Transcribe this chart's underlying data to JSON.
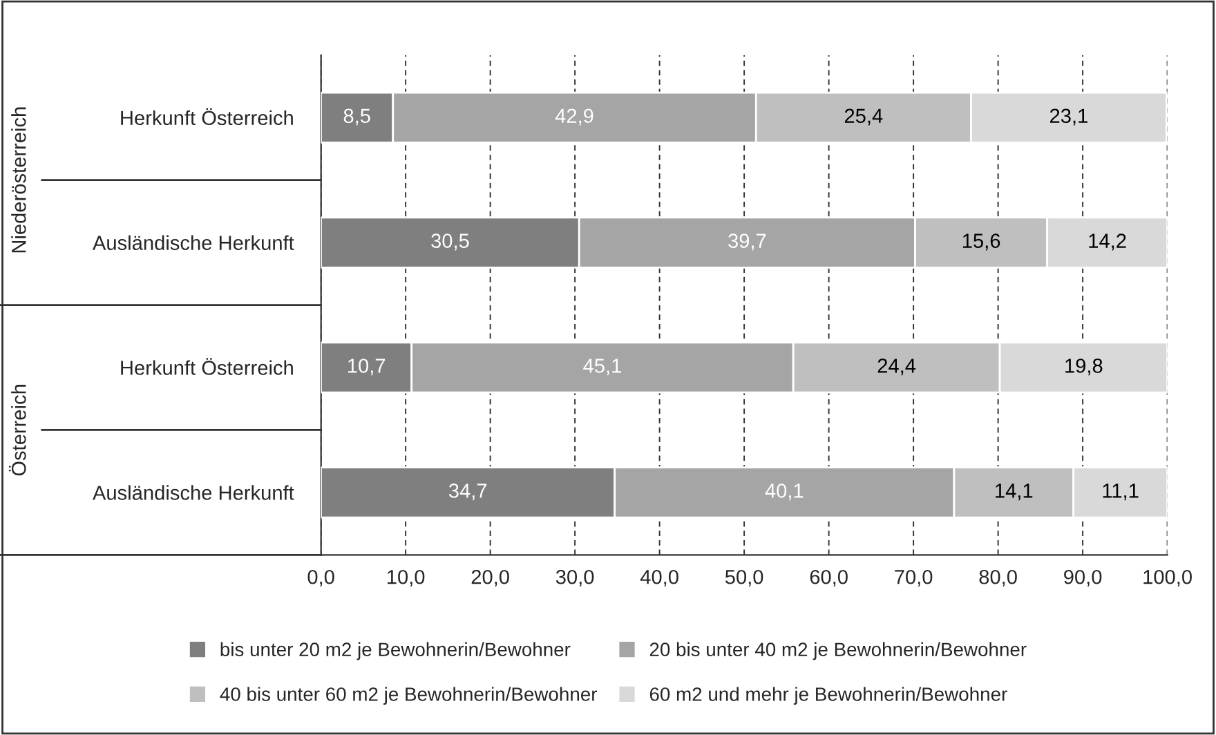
{
  "chart_data": {
    "type": "bar",
    "orientation": "horizontal",
    "stacked": true,
    "categories": [
      "Herkunft Österreich",
      "Ausländische Herkunft",
      "Herkunft Österreich",
      "Ausländische Herkunft"
    ],
    "series": [
      {
        "name": "bis unter 20 m2 je Bewohnerin/Bewohner",
        "color": "#7f7f7f",
        "values": [
          8.5,
          30.5,
          10.7,
          34.7
        ],
        "value_labels": [
          "8,5",
          "30,5",
          "10,7",
          "34,7"
        ]
      },
      {
        "name": "20 bis unter 40 m2 je Bewohnerin/Bewohner",
        "color": "#a5a5a5",
        "values": [
          42.9,
          39.7,
          45.1,
          40.1
        ],
        "value_labels": [
          "42,9",
          "39,7",
          "45,1",
          "40,1"
        ]
      },
      {
        "name": "40 bis unter 60 m2 je Bewohnerin/Bewohner",
        "color": "#bfbfbf",
        "values": [
          25.4,
          15.6,
          24.4,
          14.1
        ],
        "value_labels": [
          "25,4",
          "15,6",
          "24,4",
          "14,1"
        ]
      },
      {
        "name": "60 m2 und mehr je Bewohnerin/Bewohner",
        "color": "#d9d9d9",
        "values": [
          23.1,
          14.2,
          19.8,
          11.1
        ],
        "value_labels": [
          "23,1",
          "14,2",
          "19,8",
          "11,1"
        ]
      }
    ],
    "annotations": [
      "Niederösterreich",
      "Österreich"
    ],
    "xlim": [
      0,
      100
    ],
    "xticks": [
      {
        "value": 0,
        "label": "0,0"
      },
      {
        "value": 10,
        "label": "10,0"
      },
      {
        "value": 20,
        "label": "20,0"
      },
      {
        "value": 30,
        "label": "30,0"
      },
      {
        "value": 40,
        "label": "40,0"
      },
      {
        "value": 50,
        "label": "50,0"
      },
      {
        "value": 60,
        "label": "60,0"
      },
      {
        "value": 70,
        "label": "70,0"
      },
      {
        "value": 80,
        "label": "80,0"
      },
      {
        "value": 90,
        "label": "90,0"
      },
      {
        "value": 100,
        "label": "100,0"
      }
    ],
    "grid": "x",
    "legend": "bottom"
  }
}
